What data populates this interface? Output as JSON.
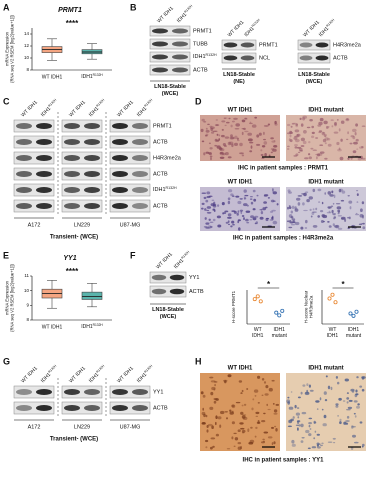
{
  "panels": {
    "A": {
      "letter": "A",
      "gene": "PRMT1",
      "y_label": [
        "mRNA Expression",
        "(RNA seq V2 RSEM [log2(value+1)])"
      ],
      "significance": "****",
      "ylim": [
        8,
        15
      ],
      "yticks": [
        8,
        10,
        12,
        14
      ],
      "groups": [
        {
          "name": "WT IDH1",
          "color": "#f4a582",
          "box": {
            "min": 9.6,
            "q1": 10.9,
            "median": 11.4,
            "q3": 11.9,
            "max": 13.2
          }
        },
        {
          "name": {
            "base": "IDH1",
            "sup": "R132H"
          },
          "color": "#5ab4ac",
          "box": {
            "min": 9.8,
            "q1": 10.7,
            "median": 11.0,
            "q3": 11.4,
            "max": 12.4
          }
        }
      ]
    },
    "B": {
      "letter": "B",
      "lanes": [
        "WT IDH1",
        {
          "base": "IDH1",
          "sup": "R132H"
        }
      ],
      "blots": [
        {
          "bands": [
            "PRMT1",
            "TUBB",
            {
              "base": "IDH1",
              "sup": "R132H"
            },
            "ACTB"
          ],
          "caption": [
            "LN18-Stable",
            "(WCE)"
          ]
        },
        {
          "bands": [
            "PRMT1",
            "NCL"
          ],
          "caption": [
            "LN18-Stable",
            "(NE)"
          ]
        },
        {
          "bands": [
            "H4R3me2a",
            "ACTB"
          ],
          "caption": [
            "LN18-Stable",
            "(WCE)"
          ]
        }
      ]
    },
    "C": {
      "letter": "C",
      "lanes": [
        "WT IDH1",
        {
          "base": "IDH1",
          "sup": "R132H"
        }
      ],
      "bands": [
        "PRMT1",
        "ACTB",
        "H4R3me2a",
        "ACTB",
        {
          "base": "IDH1",
          "sup": "R132H"
        },
        "ACTB"
      ],
      "cell_lines": [
        "A172",
        "LN229",
        "U87-MG"
      ],
      "caption": "Transient- (WCE)"
    },
    "D": {
      "letter": "D",
      "rows": [
        {
          "headers": [
            "WT IDH1",
            "IDH1 mutant"
          ],
          "caption": "IHC in patient samples : PRMT1"
        },
        {
          "headers": [
            "WT IDH1",
            "IDH1 mutant"
          ],
          "caption": "IHC in patient samples : H4R3me2a"
        }
      ]
    },
    "E": {
      "letter": "E",
      "gene": "YY1",
      "y_label": [
        "mRNA Expression",
        "(RNA seq V2 RSEM [log2(value+1)])"
      ],
      "significance": "****",
      "ylim": [
        8,
        11
      ],
      "yticks": [
        8,
        9,
        10,
        11
      ],
      "groups": [
        {
          "name": "WT IDH1",
          "color": "#f4a582",
          "box": {
            "min": 8.8,
            "q1": 9.5,
            "median": 9.8,
            "q3": 10.1,
            "max": 10.7
          }
        },
        {
          "name": {
            "base": "IDH1",
            "sup": "R132H"
          },
          "color": "#5ab4ac",
          "box": {
            "min": 8.9,
            "q1": 9.4,
            "median": 9.6,
            "q3": 9.9,
            "max": 10.5
          }
        }
      ]
    },
    "F": {
      "letter": "F",
      "lanes": [
        "WT IDH1",
        {
          "base": "IDH1",
          "sup": "R132H"
        }
      ],
      "bands": [
        "YY1",
        "ACTB"
      ],
      "caption": [
        "LN18-Stable",
        "(WCE)"
      ],
      "plots": [
        {
          "y_label": "H-score PRMT1",
          "significance": "*",
          "ylim": [
            0,
            150
          ],
          "groups": [
            {
              "name": [
                "WT",
                "IDH1"
              ],
              "color": "#e8832a",
              "values": [
                110,
                122,
                100
              ]
            },
            {
              "name": [
                "IDH1",
                "mutant"
              ],
              "color": "#2b6cb0",
              "values": [
                50,
                38,
                58
              ]
            }
          ]
        },
        {
          "y_label": [
            "H-score Nuclear",
            "H4R3me2a"
          ],
          "significance": "*",
          "ylim": [
            0,
            200
          ],
          "groups": [
            {
              "name": [
                "WT",
                "IDH1"
              ],
              "color": "#e8832a",
              "values": [
                150,
                172,
                128
              ]
            },
            {
              "name": [
                "IDH1",
                "mutant"
              ],
              "color": "#2b6cb0",
              "values": [
                62,
                48,
                72
              ]
            }
          ]
        }
      ]
    },
    "G": {
      "letter": "G",
      "lanes": [
        "WT IDH1",
        {
          "base": "IDH1",
          "sup": "R132H"
        }
      ],
      "bands": [
        "YY1",
        "ACTB"
      ],
      "cell_lines": [
        "A172",
        "LN229",
        "U87-MG"
      ],
      "caption": "Transient- (WCE)"
    },
    "H": {
      "letter": "H",
      "headers": [
        "WT IDH1",
        "IDH1 mutant"
      ],
      "caption": "IHC in patient samples : YY1"
    }
  }
}
